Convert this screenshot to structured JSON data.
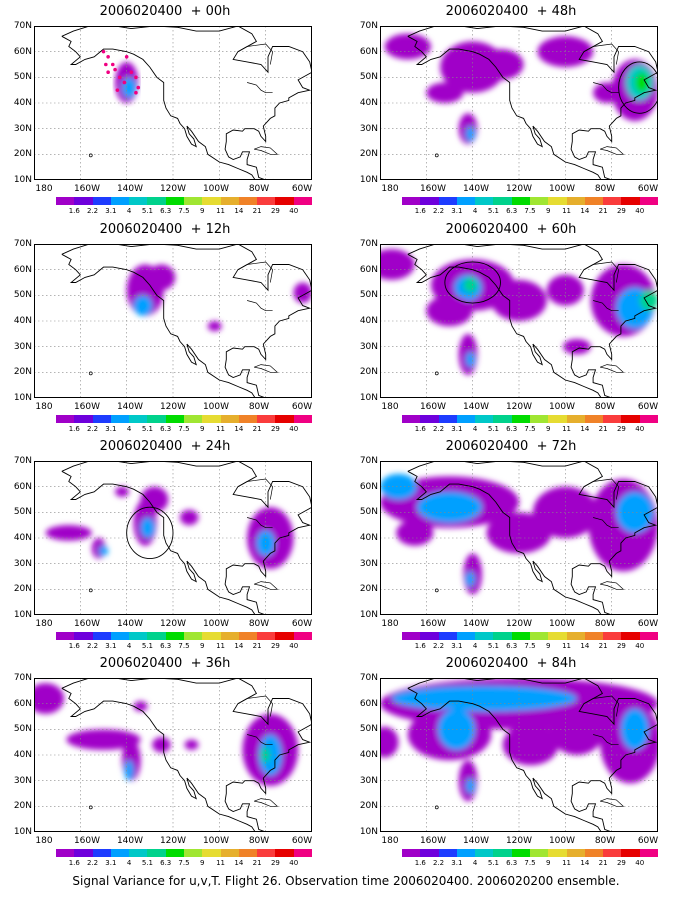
{
  "panels": [
    {
      "id": "p00",
      "title": "2006020400  + 00h"
    },
    {
      "id": "p48",
      "title": "2006020400  + 48h"
    },
    {
      "id": "p12",
      "title": "2006020400  + 12h"
    },
    {
      "id": "p60",
      "title": "2006020400  + 60h"
    },
    {
      "id": "p24",
      "title": "2006020400  + 24h"
    },
    {
      "id": "p72",
      "title": "2006020400  + 72h"
    },
    {
      "id": "p36",
      "title": "2006020400  + 36h"
    },
    {
      "id": "p84",
      "title": "2006020400  + 84h"
    }
  ],
  "lat_labels": [
    "70N",
    "60N",
    "50N",
    "40N",
    "30N",
    "20N",
    "10N"
  ],
  "lon_labels": [
    "180",
    "160W",
    "140W",
    "120W",
    "100W",
    "80W",
    "60W"
  ],
  "colorbar": {
    "colors": [
      "#a000c8",
      "#6e00dc",
      "#1e3cff",
      "#00a0ff",
      "#00c8c8",
      "#00d28c",
      "#00dc00",
      "#a0e632",
      "#e6dc32",
      "#e6af2d",
      "#f08228",
      "#fa3c3c",
      "#e60000",
      "#f00082"
    ],
    "labels": [
      "1.6",
      "2.2",
      "3.1",
      "4",
      "5.1",
      "6.3",
      "7.5",
      "9",
      "11",
      "14",
      "21",
      "29",
      "40"
    ]
  },
  "footer": "Signal Variance for u,v,T. Flight 26. Observation time 2006020400. 2006020200 ensemble."
}
